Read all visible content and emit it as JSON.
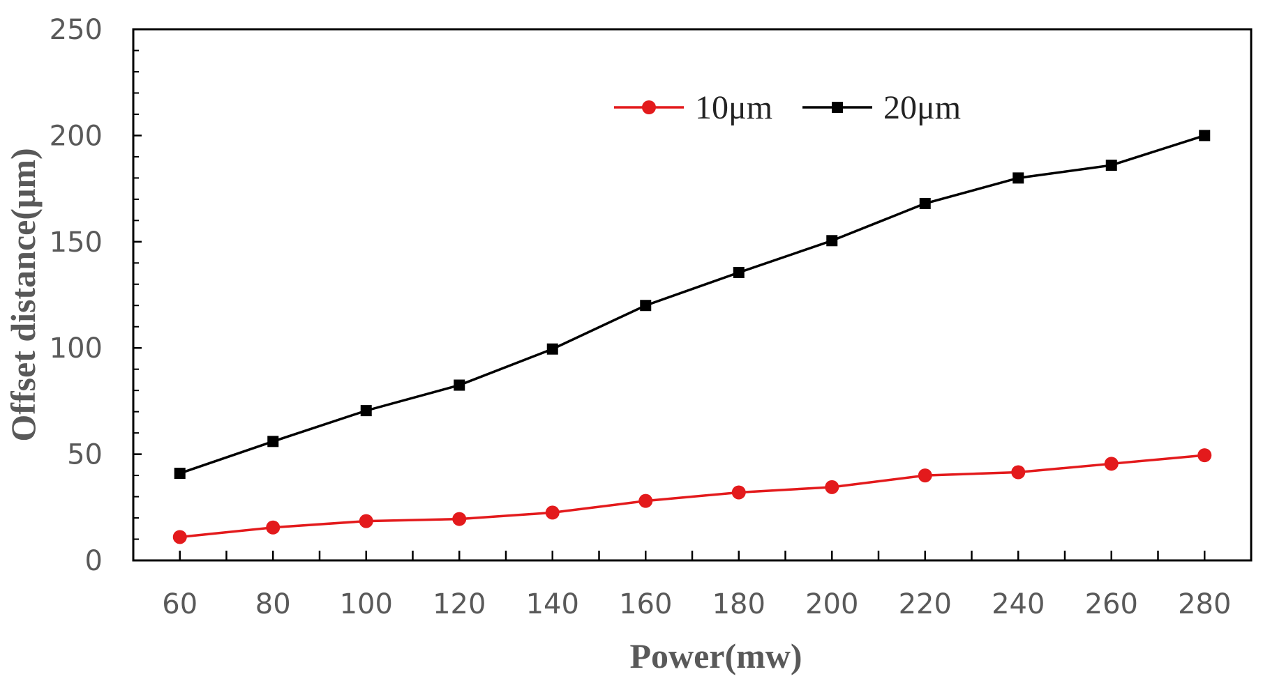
{
  "chart_data": {
    "type": "line",
    "title": "",
    "xlabel": "Power(mw)",
    "ylabel": "Offset distance(μm)",
    "x": [
      60,
      80,
      100,
      120,
      140,
      160,
      180,
      200,
      220,
      240,
      260,
      280
    ],
    "xlim": [
      50,
      290
    ],
    "ylim": [
      0,
      250
    ],
    "yticks": [
      0,
      50,
      100,
      150,
      200,
      250
    ],
    "grid": false,
    "legend_position": "top-center",
    "series": [
      {
        "name": "10μm",
        "color": "#e31a1c",
        "marker": "circle",
        "values": [
          11,
          15.5,
          18.5,
          19.5,
          22.5,
          28,
          32,
          34.5,
          40,
          41.5,
          45.5,
          49.5
        ]
      },
      {
        "name": "20μm",
        "color": "#000000",
        "marker": "square",
        "values": [
          41,
          56,
          70.5,
          82.5,
          99.5,
          120,
          135.5,
          150.5,
          168,
          180,
          186,
          200
        ]
      }
    ]
  }
}
